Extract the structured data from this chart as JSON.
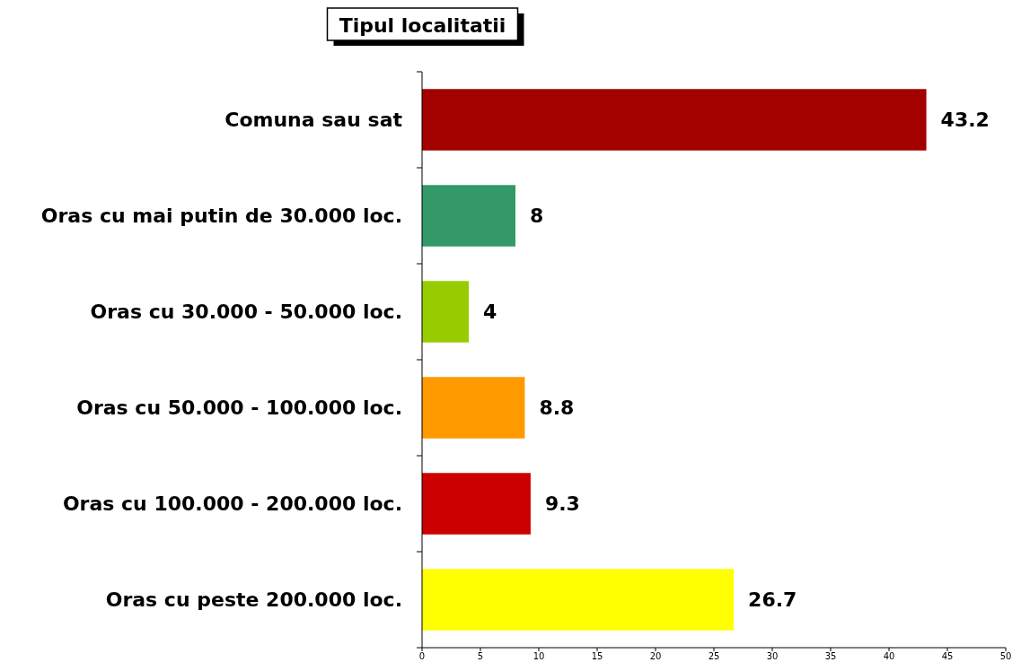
{
  "chart_data": {
    "type": "bar",
    "orientation": "horizontal",
    "title": "Tipul localitatii",
    "categories": [
      "Comuna sau sat",
      "Oras cu mai putin de 30.000 loc.",
      "Oras cu 30.000 - 50.000 loc.",
      "Oras cu 50.000 - 100.000 loc.",
      "Oras cu 100.000 - 200.000 loc.",
      "Oras cu peste 200.000 loc."
    ],
    "values": [
      43.2,
      8,
      4,
      8.8,
      9.3,
      26.7
    ],
    "colors": [
      "#a30000",
      "#339966",
      "#99cc00",
      "#ff9900",
      "#cc0000",
      "#ffff00"
    ],
    "xlim": [
      0,
      50
    ],
    "xticks": [
      0,
      5,
      10,
      15,
      20,
      25,
      30,
      35,
      40,
      45,
      50
    ],
    "data_labels": true
  }
}
